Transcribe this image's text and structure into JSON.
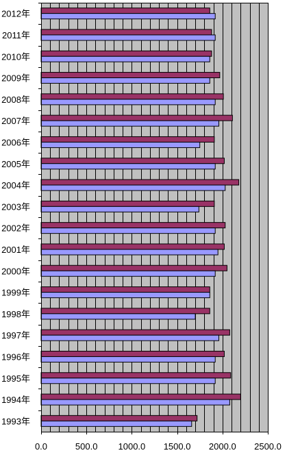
{
  "chart_data": {
    "type": "bar",
    "orientation": "horizontal",
    "categories": [
      "2012年",
      "2011年",
      "2010年",
      "2009年",
      "2008年",
      "2007年",
      "2006年",
      "2005年",
      "2004年",
      "2003年",
      "2002年",
      "2001年",
      "2000年",
      "1999年",
      "1998年",
      "1997年",
      "1996年",
      "1995年",
      "1994年",
      "1993年"
    ],
    "series": [
      {
        "color": "#993366",
        "values": [
          1860,
          1880,
          1880,
          1970,
          2010,
          2110,
          1910,
          2020,
          2180,
          1910,
          2030,
          2020,
          2050,
          1860,
          1860,
          2080,
          2020,
          2090,
          2200,
          1720
        ]
      },
      {
        "color": "#9999ff",
        "values": [
          1920,
          1920,
          1860,
          1860,
          1920,
          1960,
          1750,
          1920,
          2030,
          1740,
          1920,
          1950,
          1920,
          1860,
          1700,
          1960,
          1920,
          1920,
          2080,
          1660
        ]
      }
    ],
    "xticks": [
      "0.0",
      "500.0",
      "1000.0",
      "1500.0",
      "2000.0",
      "2500.0"
    ],
    "xlim": [
      0,
      2500
    ],
    "plot_background": "#c0c0c0",
    "grid": true,
    "legend": "none"
  }
}
